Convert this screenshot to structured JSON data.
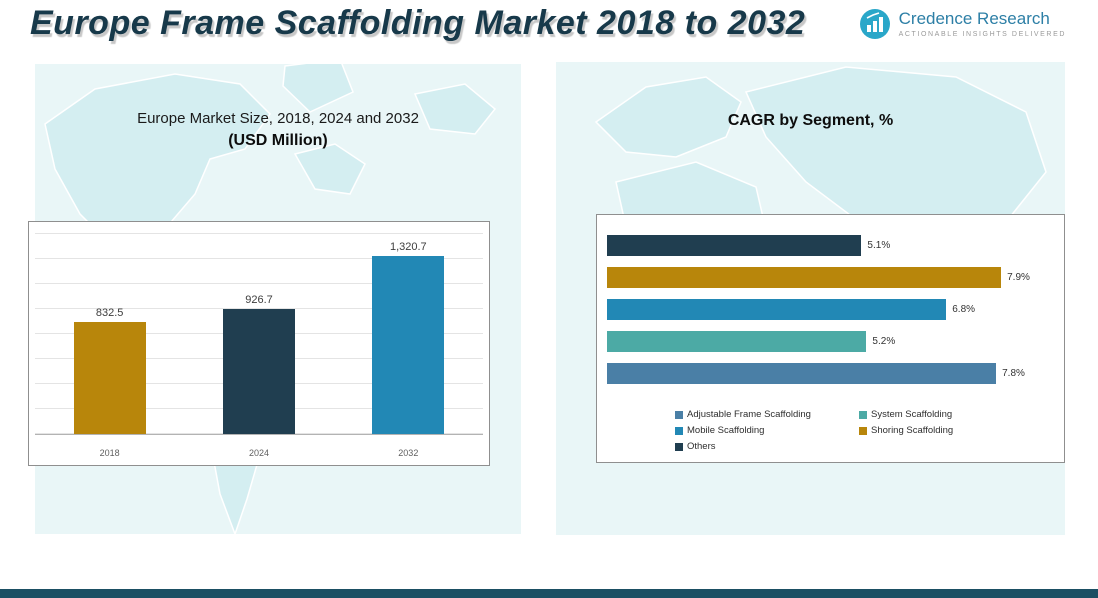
{
  "header": {
    "title": "Europe Frame Scaffolding Market 2018 to 2032",
    "brand": {
      "name": "Credence Research",
      "tagline": "Actionable Insights Delivered",
      "icon": "bar-chart-growth-icon",
      "icon_color": "#2aa7c9",
      "name_color": "#2d7fa6"
    }
  },
  "left_panel": {
    "title_line1": "Europe Market Size, 2018, 2024 and 2032",
    "title_line2": "(USD Million)"
  },
  "right_panel": {
    "title": "CAGR by Segment, %"
  },
  "chart_data": [
    {
      "type": "bar",
      "title": "Europe Market Size, 2018, 2024 and 2032 (USD Million)",
      "categories": [
        "2018",
        "2024",
        "2032"
      ],
      "values": [
        832.5,
        926.7,
        1320.7
      ],
      "value_labels": [
        "832.5",
        "926.7",
        "1,320.7"
      ],
      "colors": [
        "#b8860b",
        "#203e50",
        "#2288b5"
      ],
      "xlabel": "",
      "ylabel": "",
      "ylim": [
        0,
        1500
      ],
      "grid": true,
      "legend_position": "none"
    },
    {
      "type": "bar",
      "orientation": "horizontal",
      "title": "CAGR by Segment, %",
      "categories": [
        "Others",
        "Shoring Scaffolding",
        "Mobile Scaffolding",
        "System Scaffolding",
        "Adjustable Frame Scaffolding"
      ],
      "values": [
        5.1,
        7.9,
        6.8,
        5.2,
        7.8
      ],
      "value_labels": [
        "5.1%",
        "7.9%",
        "6.8%",
        "5.2%",
        "7.8%"
      ],
      "colors": [
        "#203e50",
        "#b8860b",
        "#2288b5",
        "#4caaa5",
        "#4a7fa6"
      ],
      "xlabel": "",
      "ylabel": "",
      "xlim": [
        0,
        9
      ],
      "grid": false,
      "legend_position": "bottom",
      "legend": [
        {
          "label": "Adjustable Frame Scaffolding",
          "color": "#4a7fa6"
        },
        {
          "label": "System Scaffolding",
          "color": "#4caaa5"
        },
        {
          "label": "Mobile Scaffolding",
          "color": "#2288b5"
        },
        {
          "label": "Shoring Scaffolding",
          "color": "#b8860b"
        },
        {
          "label": "Others",
          "color": "#203e50"
        }
      ]
    }
  ],
  "footer": {
    "bar_color": "#1b4f63"
  }
}
